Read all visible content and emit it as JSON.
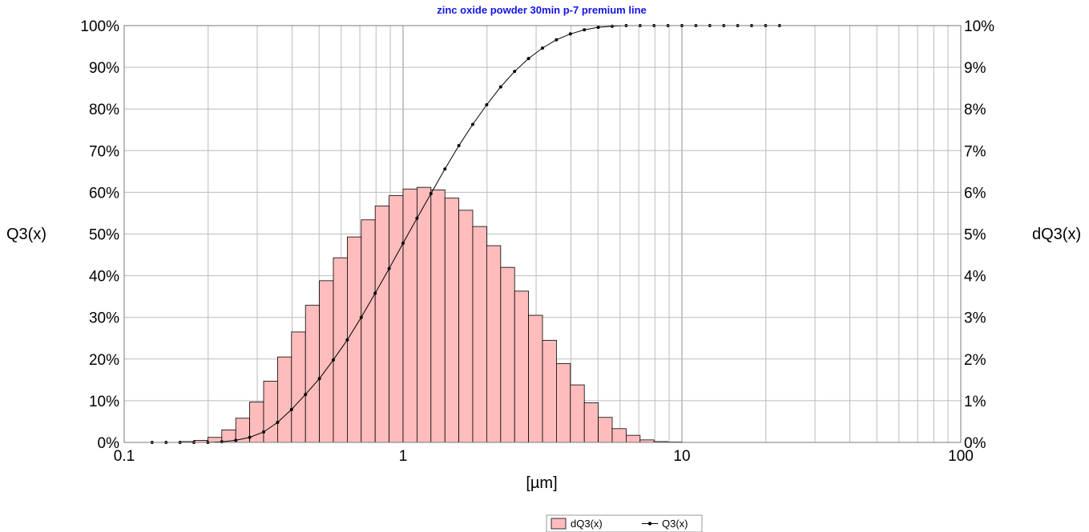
{
  "chart_data": {
    "type": "bar",
    "title": "zinc oxide powder 30min p-7 premium line",
    "xlabel": "[µm]",
    "ylabel_left": "Q3(x)",
    "ylabel_right": "dQ3(x)",
    "x_scale": "log",
    "xlim": [
      0.1,
      100
    ],
    "x_tick_labels": [
      {
        "value": 0.1,
        "label": "0.1"
      },
      {
        "value": 1,
        "label": "1"
      },
      {
        "value": 10,
        "label": "10"
      },
      {
        "value": 100,
        "label": "100"
      }
    ],
    "y_left_ticks": [
      "0%",
      "10%",
      "20%",
      "30%",
      "40%",
      "50%",
      "60%",
      "70%",
      "80%",
      "90%",
      "100%"
    ],
    "y_right_ticks": [
      "0%",
      "1%",
      "2%",
      "3%",
      "4%",
      "5%",
      "6%",
      "7%",
      "8%",
      "9%",
      "10%"
    ],
    "ylim_left": [
      0,
      100
    ],
    "ylim_right": [
      0,
      10
    ],
    "grid": true,
    "legend_position": "bottom-center",
    "series": [
      {
        "name": "dQ3(x)",
        "type": "bar",
        "axis": "right",
        "color": "#ffbcbc",
        "bin_edges": [
          0.1,
          0.1122,
          0.1259,
          0.1413,
          0.1585,
          0.1778,
          0.1995,
          0.2239,
          0.2512,
          0.2818,
          0.3162,
          0.3548,
          0.3981,
          0.4467,
          0.5012,
          0.5623,
          0.631,
          0.7079,
          0.7943,
          0.8913,
          1.0,
          1.122,
          1.259,
          1.413,
          1.585,
          1.778,
          1.995,
          2.239,
          2.512,
          2.818,
          3.162,
          3.548,
          3.981,
          4.467,
          5.012,
          5.623,
          6.31,
          7.079,
          7.943,
          8.913,
          10.0,
          11.22,
          12.59,
          14.13,
          15.85,
          17.78,
          19.95,
          22.39
        ],
        "values": [
          0,
          0,
          0,
          0,
          0.02,
          0.05,
          0.12,
          0.3,
          0.58,
          0.97,
          1.47,
          2.05,
          2.65,
          3.29,
          3.88,
          4.43,
          4.93,
          5.34,
          5.67,
          5.92,
          6.08,
          6.12,
          6.06,
          5.86,
          5.57,
          5.18,
          4.72,
          4.2,
          3.63,
          3.05,
          2.45,
          1.89,
          1.38,
          0.95,
          0.6,
          0.33,
          0.17,
          0.06,
          0.02,
          0.01,
          0,
          0,
          0,
          0,
          0,
          0,
          0
        ]
      },
      {
        "name": "Q3(x)",
        "type": "line",
        "axis": "left",
        "color": "#000000",
        "x": [
          0.1259,
          0.1413,
          0.1585,
          0.1778,
          0.1995,
          0.2239,
          0.2512,
          0.2818,
          0.3162,
          0.3548,
          0.3981,
          0.4467,
          0.5012,
          0.5623,
          0.631,
          0.7079,
          0.7943,
          0.8913,
          1.0,
          1.122,
          1.259,
          1.413,
          1.585,
          1.778,
          1.995,
          2.239,
          2.512,
          2.818,
          3.162,
          3.548,
          3.981,
          4.467,
          5.012,
          5.623,
          6.31,
          7.079,
          7.943,
          8.913,
          10.0,
          11.22,
          12.59,
          14.13,
          15.85,
          17.78,
          19.95,
          22.39
        ],
        "values": [
          0,
          0,
          0,
          0,
          0,
          0.15,
          0.5,
          1.2,
          2.5,
          4.8,
          7.9,
          11.5,
          15.3,
          19.8,
          24.6,
          30.0,
          35.8,
          41.7,
          47.8,
          53.8,
          59.7,
          65.6,
          71.2,
          76.3,
          81.0,
          85.3,
          89.0,
          92.1,
          94.6,
          96.6,
          98.0,
          99.0,
          99.6,
          99.85,
          100,
          100,
          100,
          100,
          100,
          100,
          100,
          100,
          100,
          100,
          100,
          100
        ]
      }
    ]
  }
}
